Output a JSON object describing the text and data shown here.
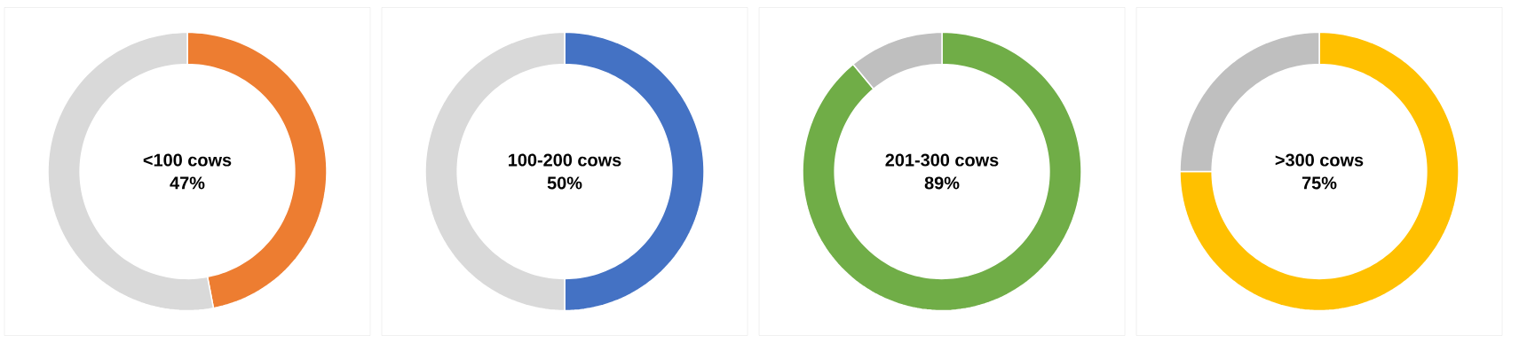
{
  "chart_data": [
    {
      "type": "donut",
      "title": "<100 cows",
      "categories": [
        null,
        null
      ],
      "values": [
        47,
        53
      ],
      "colors": [
        "#ed7d31",
        "#d9d9d9"
      ],
      "annotations": [
        "47%"
      ]
    },
    {
      "type": "donut",
      "title": "100-200 cows",
      "categories": [
        null,
        null
      ],
      "values": [
        50,
        50
      ],
      "colors": [
        "#4472c4",
        "#d9d9d9"
      ],
      "annotations": [
        "50%"
      ]
    },
    {
      "type": "donut",
      "title": "201-300 cows",
      "categories": [
        null,
        null
      ],
      "values": [
        89,
        11
      ],
      "colors": [
        "#70ad47",
        "#bfbfbf"
      ],
      "annotations": [
        "89%"
      ]
    },
    {
      "type": "donut",
      "title": ">300 cows",
      "categories": [
        null,
        null
      ],
      "values": [
        75,
        25
      ],
      "colors": [
        "#ffc000",
        "#bfbfbf"
      ],
      "annotations": [
        "75%"
      ]
    }
  ]
}
